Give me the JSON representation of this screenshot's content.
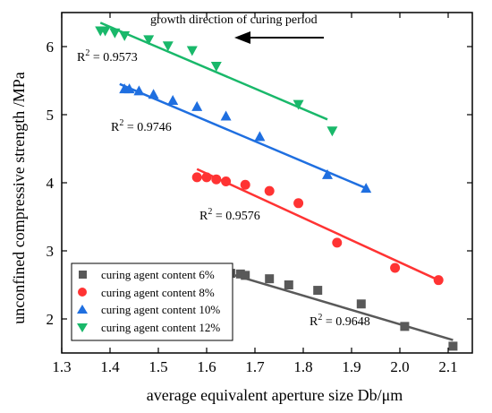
{
  "chart_data": {
    "type": "scatter",
    "xlabel": "average equivalent aperture size Db/μm",
    "ylabel": "unconfined compressive strength /MPa",
    "xlim": [
      1.3,
      2.15
    ],
    "ylim": [
      1.5,
      6.5
    ],
    "x_ticks": [
      "1.3",
      "1.4",
      "1.5",
      "1.6",
      "1.7",
      "1.8",
      "1.9",
      "2.0",
      "2.1"
    ],
    "y_ticks": [
      "2",
      "3",
      "4",
      "5",
      "6"
    ],
    "legend_position": "bottom-left",
    "annotation": "growth direction of curing period",
    "series": [
      {
        "name": "curing agent content 6%",
        "color": "#595959",
        "marker": "square",
        "points": [
          [
            1.65,
            2.67
          ],
          [
            1.67,
            2.66
          ],
          [
            1.68,
            2.64
          ],
          [
            1.73,
            2.59
          ],
          [
            1.77,
            2.5
          ],
          [
            1.83,
            2.42
          ],
          [
            1.92,
            2.22
          ],
          [
            2.01,
            1.89
          ],
          [
            2.11,
            1.6
          ]
        ],
        "fit": {
          "x": [
            1.63,
            2.11
          ],
          "y": [
            2.7,
            1.69
          ]
        },
        "r2": "0.9648"
      },
      {
        "name": "curing agent content 8%",
        "color": "#ff3333",
        "marker": "circle",
        "points": [
          [
            1.58,
            4.08
          ],
          [
            1.6,
            4.08
          ],
          [
            1.62,
            4.05
          ],
          [
            1.64,
            4.02
          ],
          [
            1.68,
            3.97
          ],
          [
            1.73,
            3.88
          ],
          [
            1.79,
            3.7
          ],
          [
            1.87,
            3.12
          ],
          [
            1.99,
            2.75
          ],
          [
            2.08,
            2.57
          ]
        ],
        "fit": {
          "x": [
            1.58,
            2.08
          ],
          "y": [
            4.2,
            2.57
          ]
        },
        "r2": "0.9576"
      },
      {
        "name": "curing agent content 10%",
        "color": "#1f6fe0",
        "marker": "triangle",
        "points": [
          [
            1.43,
            5.38
          ],
          [
            1.44,
            5.38
          ],
          [
            1.46,
            5.35
          ],
          [
            1.49,
            5.3
          ],
          [
            1.53,
            5.21
          ],
          [
            1.58,
            5.12
          ],
          [
            1.64,
            4.98
          ],
          [
            1.71,
            4.68
          ],
          [
            1.85,
            4.12
          ],
          [
            1.93,
            3.92
          ]
        ],
        "fit": {
          "x": [
            1.42,
            1.93
          ],
          "y": [
            5.45,
            3.92
          ]
        },
        "r2": "0.9746"
      },
      {
        "name": "curing agent content 12%",
        "color": "#19b86a",
        "marker": "triangle-down",
        "points": [
          [
            1.38,
            6.23
          ],
          [
            1.39,
            6.23
          ],
          [
            1.41,
            6.2
          ],
          [
            1.43,
            6.16
          ],
          [
            1.48,
            6.1
          ],
          [
            1.52,
            6.01
          ],
          [
            1.57,
            5.94
          ],
          [
            1.62,
            5.71
          ],
          [
            1.79,
            5.15
          ],
          [
            1.86,
            4.76
          ]
        ],
        "fit": {
          "x": [
            1.38,
            1.85
          ],
          "y": [
            6.35,
            4.93
          ]
        },
        "r2": "0.9573"
      }
    ]
  }
}
